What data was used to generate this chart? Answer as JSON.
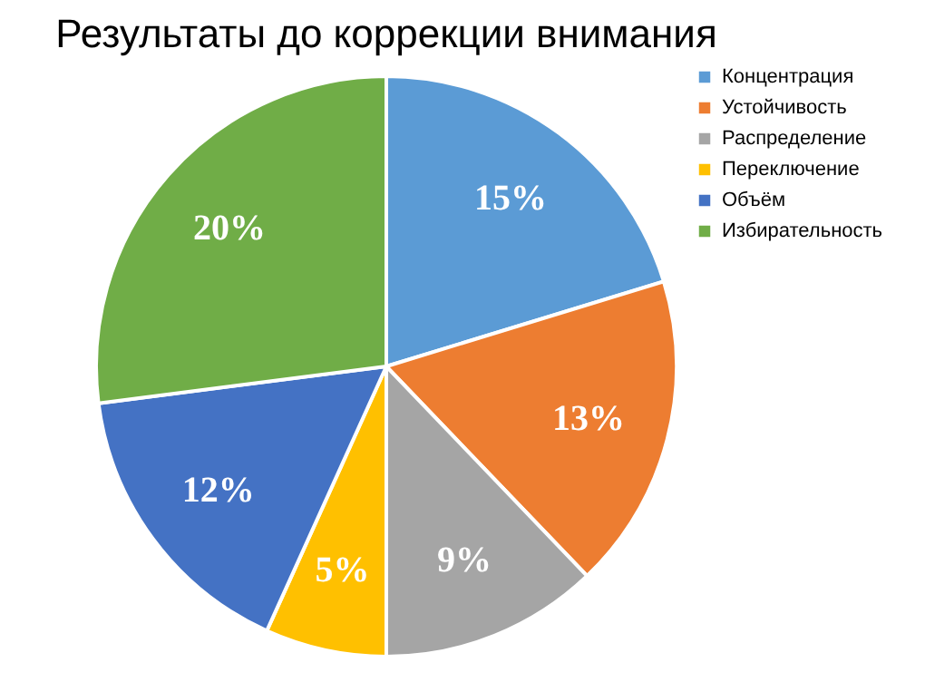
{
  "chart_data": {
    "type": "pie",
    "title": "Результаты до коррекции внимания",
    "categories": [
      "Концентрация",
      "Устойчивость",
      "Распределение",
      "Переключение",
      "Объём",
      "Избирательность"
    ],
    "values": [
      15,
      13,
      9,
      5,
      12,
      20
    ],
    "value_labels": [
      "15%",
      "13%",
      "9%",
      "5%",
      "12%",
      "20%"
    ],
    "colors": [
      "#5b9bd5",
      "#ed7d31",
      "#a5a5a5",
      "#ffc000",
      "#4472c4",
      "#70ad47"
    ],
    "legend": "right"
  }
}
